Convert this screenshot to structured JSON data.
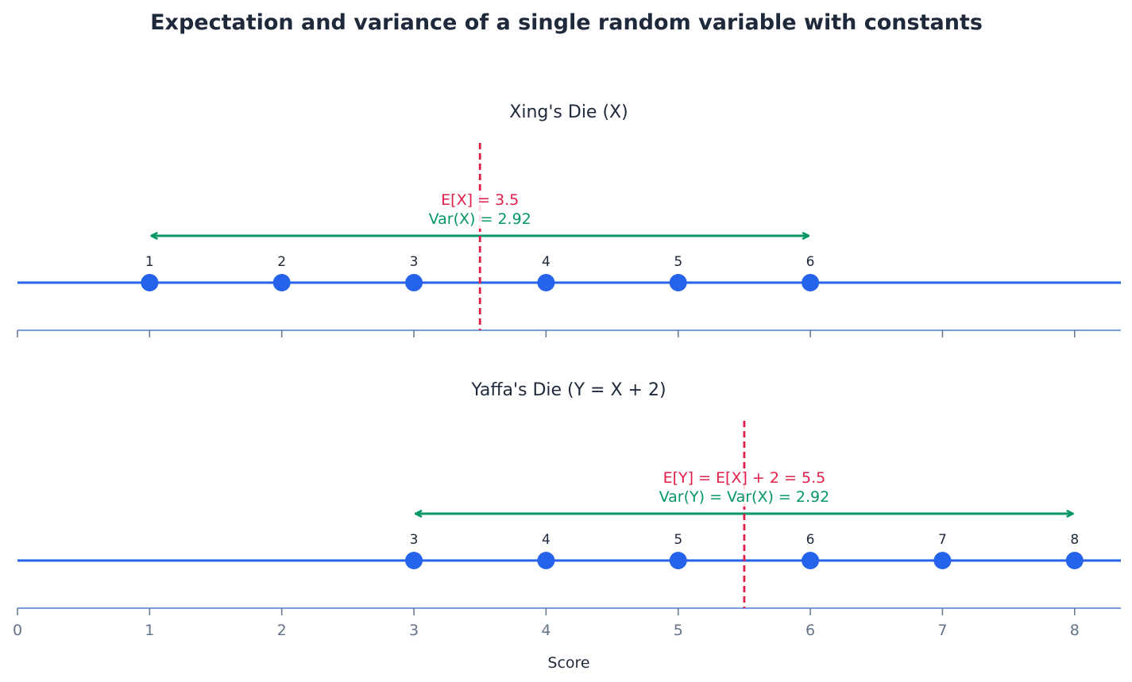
{
  "chart_data": {
    "type": "scatter",
    "title": "Expectation and variance of a single random variable with constants",
    "xlabel": "Score",
    "xlim": [
      0,
      8.35
    ],
    "xticks": [
      0,
      1,
      2,
      3,
      4,
      5,
      6,
      7,
      8
    ],
    "colors": {
      "title": "#1e293b",
      "points": "#2563eb",
      "axis": "#4a7bd8",
      "mean": "#e11d48",
      "variance": "#059669",
      "ticks": "#64748b"
    },
    "panels": [
      {
        "title": "Xing's Die (X)",
        "values": [
          1,
          2,
          3,
          4,
          5,
          6
        ],
        "mean": 3.5,
        "mean_label": "E[X] = 3.5",
        "variance_label": "Var(X) = 2.92",
        "range": [
          1,
          6
        ]
      },
      {
        "title": "Yaffa's Die (Y = X + 2)",
        "values": [
          3,
          4,
          5,
          6,
          7,
          8
        ],
        "mean": 5.5,
        "mean_label": "E[Y] = E[X] + 2 = 5.5",
        "variance_label": "Var(Y) = Var(X) = 2.92",
        "range": [
          3,
          8
        ]
      }
    ]
  }
}
